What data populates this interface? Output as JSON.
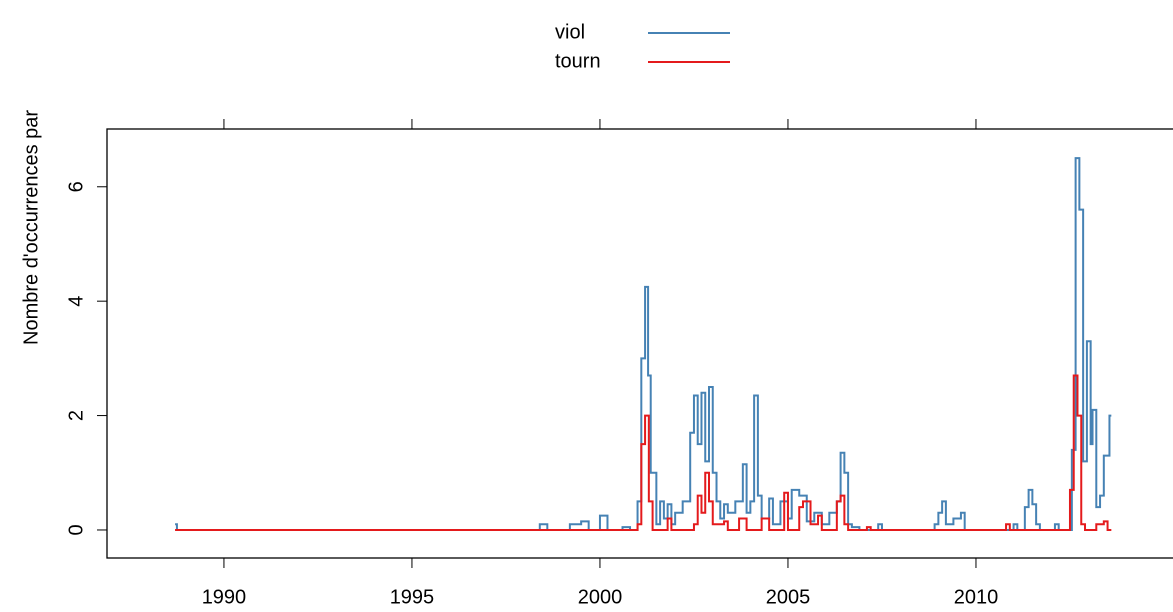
{
  "chart_data": {
    "type": "line",
    "step": true,
    "ylabel": "Nombre d'occurrences par",
    "xlim": [
      1986.89,
      2015.24
    ],
    "xticks": [
      1990,
      1995,
      2000,
      2005,
      2010
    ],
    "ylim": [
      -0.49,
      7.01
    ],
    "yticks": [
      0,
      2,
      4,
      6
    ],
    "series": [
      {
        "name": "viol",
        "color": "#4682b4",
        "x": [
          1988.7,
          1988.75,
          1998.4,
          1998.6,
          1999.2,
          1999.5,
          1999.7,
          2000.0,
          2000.2,
          2000.6,
          2000.8,
          2001.0,
          2001.1,
          2001.2,
          2001.28,
          2001.35,
          2001.5,
          2001.6,
          2001.7,
          2001.8,
          2001.9,
          2002.0,
          2002.2,
          2002.4,
          2002.5,
          2002.6,
          2002.7,
          2002.8,
          2002.9,
          2003.0,
          2003.1,
          2003.2,
          2003.3,
          2003.4,
          2003.6,
          2003.8,
          2003.9,
          2004.0,
          2004.1,
          2004.2,
          2004.3,
          2004.5,
          2004.6,
          2004.8,
          2005.0,
          2005.1,
          2005.3,
          2005.5,
          2005.7,
          2005.9,
          2006.1,
          2006.3,
          2006.4,
          2006.5,
          2006.6,
          2006.7,
          2006.9,
          2007.0,
          2007.4,
          2007.5,
          2008.9,
          2009.0,
          2009.1,
          2009.2,
          2009.4,
          2009.6,
          2009.7,
          2011.0,
          2011.1,
          2011.3,
          2011.4,
          2011.5,
          2011.6,
          2011.7,
          2012.1,
          2012.2,
          2012.55,
          2012.65,
          2012.75,
          2012.85,
          2012.95,
          2013.05,
          2013.1,
          2013.2,
          2013.3,
          2013.4,
          2013.55,
          2013.6
        ],
        "values": [
          0.1,
          0,
          0.1,
          0,
          0.1,
          0.15,
          0,
          0.25,
          0,
          0.05,
          0,
          0.5,
          3.0,
          4.25,
          2.7,
          1.0,
          0.1,
          0.5,
          0.2,
          0.45,
          0.1,
          0.3,
          0.5,
          1.7,
          2.35,
          1.5,
          2.4,
          1.2,
          2.5,
          1.0,
          0.5,
          0.2,
          0.45,
          0.3,
          0.5,
          1.15,
          0.3,
          0.5,
          2.35,
          0.6,
          0.2,
          0.55,
          0.1,
          0.5,
          0.2,
          0.7,
          0.6,
          0.15,
          0.3,
          0.1,
          0.3,
          0.5,
          1.35,
          1.0,
          0.1,
          0.05,
          0,
          0,
          0.1,
          0,
          0.1,
          0.3,
          0.5,
          0.1,
          0.2,
          0.3,
          0,
          0.1,
          0,
          0.4,
          0.7,
          0.45,
          0.1,
          0,
          0.1,
          0,
          1.4,
          6.5,
          5.6,
          1.2,
          3.3,
          1.5,
          2.1,
          0.4,
          0.6,
          1.3,
          2.0,
          2.0
        ]
      },
      {
        "name": "tourn",
        "color": "#e41a1c",
        "x": [
          1988.7,
          2001.0,
          2001.1,
          2001.2,
          2001.3,
          2001.4,
          2001.8,
          2001.9,
          2002.5,
          2002.6,
          2002.7,
          2002.8,
          2002.9,
          2003.0,
          2003.3,
          2003.4,
          2003.7,
          2003.9,
          2004.3,
          2004.5,
          2004.9,
          2005.0,
          2005.3,
          2005.4,
          2005.6,
          2005.8,
          2005.9,
          2006.3,
          2006.4,
          2006.5,
          2006.6,
          2007.1,
          2007.2,
          2010.8,
          2010.9,
          2012.5,
          2012.6,
          2012.7,
          2012.8,
          2012.9,
          2013.2,
          2013.4,
          2013.5,
          2013.6
        ],
        "values": [
          0,
          0.1,
          1.5,
          2.0,
          0.5,
          0,
          0.2,
          0,
          0.1,
          0.6,
          0.3,
          1.0,
          0.5,
          0.1,
          0.15,
          0,
          0.2,
          0,
          0.2,
          0,
          0.65,
          0,
          0.4,
          0.5,
          0.1,
          0.25,
          0,
          0.5,
          0.6,
          0.1,
          0,
          0.05,
          0,
          0.1,
          0,
          0.7,
          2.7,
          2.0,
          0.1,
          0,
          0.1,
          0.15,
          0,
          0
        ]
      }
    ]
  }
}
